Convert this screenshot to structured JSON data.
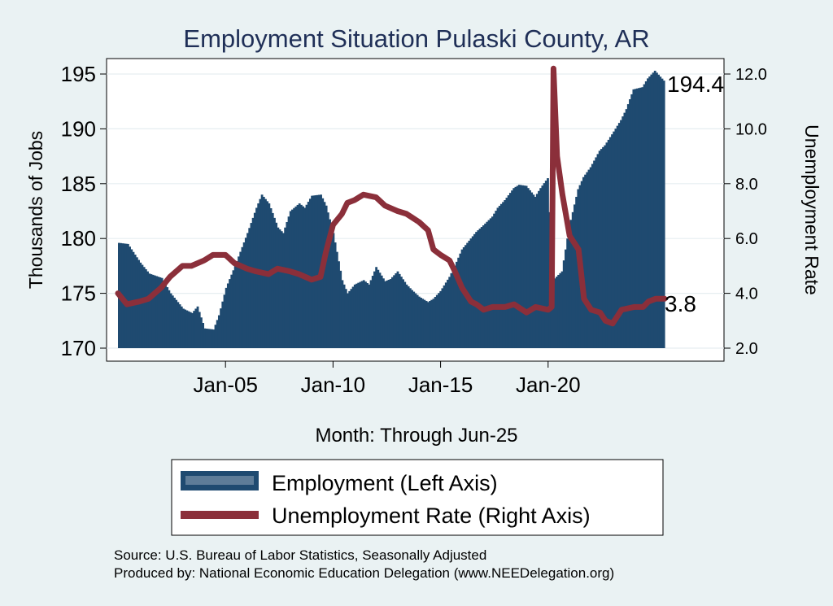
{
  "chart_data": {
    "type": "bar+line",
    "title": "Employment Situation Pulaski  County, AR",
    "xlabel": "Month: Through Jun-25",
    "ylabel_left": "Thousands of Jobs",
    "ylabel_right": "Unemployment Rate",
    "x_tick_labels": [
      "Jan-05",
      "Jan-10",
      "Jan-15",
      "Jan-20"
    ],
    "x_ticks_dates": [
      "2005-01",
      "2010-01",
      "2015-01",
      "2020-01"
    ],
    "x_range": [
      "2000-01",
      "2025-06"
    ],
    "ylim_left": [
      170,
      195
    ],
    "yticks_left": [
      170,
      175,
      180,
      185,
      190,
      195
    ],
    "ylim_right": [
      2.0,
      12.0
    ],
    "yticks_right": [
      "2.0",
      "4.0",
      "6.0",
      "8.0",
      "10.0",
      "12.0"
    ],
    "end_labels": {
      "employment": "194.4",
      "unemployment": "3.8"
    },
    "colors": {
      "employment": "#1f4a70",
      "unemployment": "#8b2f3a",
      "background": "#eaf2f3",
      "plot": "#ffffff",
      "grid": "#e6eef0",
      "title": "#1f2f57"
    },
    "grid": true,
    "legend_position": "bottom",
    "series": [
      {
        "name": "Employment (Left Axis)",
        "type": "bar",
        "axis": "left",
        "points": [
          [
            "2000-01",
            179.6
          ],
          [
            "2000-06",
            179.5
          ],
          [
            "2001-01",
            177.8
          ],
          [
            "2001-06",
            176.8
          ],
          [
            "2002-01",
            176.4
          ],
          [
            "2002-06",
            175.0
          ],
          [
            "2003-01",
            173.6
          ],
          [
            "2003-06",
            173.2
          ],
          [
            "2003-09",
            173.8
          ],
          [
            "2004-01",
            171.8
          ],
          [
            "2004-06",
            171.7
          ],
          [
            "2004-09",
            173.0
          ],
          [
            "2005-01",
            175.5
          ],
          [
            "2005-06",
            177.5
          ],
          [
            "2006-01",
            180.5
          ],
          [
            "2006-06",
            182.8
          ],
          [
            "2006-09",
            184.0
          ],
          [
            "2007-01",
            183.2
          ],
          [
            "2007-06",
            181.0
          ],
          [
            "2007-09",
            180.5
          ],
          [
            "2008-01",
            182.5
          ],
          [
            "2008-06",
            183.2
          ],
          [
            "2008-09",
            182.8
          ],
          [
            "2009-01",
            183.9
          ],
          [
            "2009-06",
            184.0
          ],
          [
            "2009-09",
            183.0
          ],
          [
            "2010-01",
            180.5
          ],
          [
            "2010-06",
            176.2
          ],
          [
            "2010-09",
            175.0
          ],
          [
            "2011-01",
            175.8
          ],
          [
            "2011-06",
            176.2
          ],
          [
            "2011-09",
            175.8
          ],
          [
            "2012-01",
            177.4
          ],
          [
            "2012-06",
            176.1
          ],
          [
            "2012-09",
            176.3
          ],
          [
            "2013-01",
            177.0
          ],
          [
            "2013-06",
            175.8
          ],
          [
            "2013-09",
            175.3
          ],
          [
            "2014-01",
            174.7
          ],
          [
            "2014-06",
            174.2
          ],
          [
            "2014-09",
            174.5
          ],
          [
            "2015-01",
            175.2
          ],
          [
            "2015-06",
            176.5
          ],
          [
            "2015-09",
            177.5
          ],
          [
            "2016-01",
            179.0
          ],
          [
            "2016-06",
            180.0
          ],
          [
            "2016-09",
            180.6
          ],
          [
            "2017-01",
            181.2
          ],
          [
            "2017-06",
            182.0
          ],
          [
            "2017-09",
            182.8
          ],
          [
            "2018-01",
            183.5
          ],
          [
            "2018-06",
            184.6
          ],
          [
            "2018-09",
            184.9
          ],
          [
            "2019-01",
            184.8
          ],
          [
            "2019-06",
            183.8
          ],
          [
            "2019-09",
            184.6
          ],
          [
            "2020-01",
            185.5
          ],
          [
            "2020-04",
            176.2
          ],
          [
            "2020-09",
            177.0
          ],
          [
            "2021-01",
            181.0
          ],
          [
            "2021-06",
            184.5
          ],
          [
            "2021-09",
            185.6
          ],
          [
            "2022-01",
            186.5
          ],
          [
            "2022-06",
            188.0
          ],
          [
            "2022-09",
            188.5
          ],
          [
            "2023-01",
            189.5
          ],
          [
            "2023-06",
            190.8
          ],
          [
            "2023-09",
            191.8
          ],
          [
            "2024-01",
            193.6
          ],
          [
            "2024-06",
            193.8
          ],
          [
            "2024-09",
            194.6
          ],
          [
            "2025-01",
            195.3
          ],
          [
            "2025-06",
            194.4
          ]
        ]
      },
      {
        "name": "Unemployment Rate (Right Axis)",
        "type": "line",
        "axis": "right",
        "points": [
          [
            "2000-01",
            4.0
          ],
          [
            "2000-06",
            3.6
          ],
          [
            "2001-01",
            3.7
          ],
          [
            "2001-06",
            3.8
          ],
          [
            "2002-01",
            4.2
          ],
          [
            "2002-06",
            4.6
          ],
          [
            "2003-01",
            5.0
          ],
          [
            "2003-06",
            5.0
          ],
          [
            "2004-01",
            5.2
          ],
          [
            "2004-06",
            5.4
          ],
          [
            "2005-01",
            5.4
          ],
          [
            "2005-06",
            5.1
          ],
          [
            "2006-01",
            4.9
          ],
          [
            "2006-06",
            4.8
          ],
          [
            "2007-01",
            4.7
          ],
          [
            "2007-06",
            4.9
          ],
          [
            "2008-01",
            4.8
          ],
          [
            "2008-06",
            4.7
          ],
          [
            "2009-01",
            4.5
          ],
          [
            "2009-06",
            4.6
          ],
          [
            "2009-09",
            5.5
          ],
          [
            "2010-01",
            6.5
          ],
          [
            "2010-06",
            6.9
          ],
          [
            "2010-09",
            7.3
          ],
          [
            "2011-01",
            7.4
          ],
          [
            "2011-06",
            7.6
          ],
          [
            "2012-01",
            7.5
          ],
          [
            "2012-06",
            7.2
          ],
          [
            "2013-01",
            7.0
          ],
          [
            "2013-06",
            6.9
          ],
          [
            "2014-01",
            6.6
          ],
          [
            "2014-06",
            6.3
          ],
          [
            "2014-09",
            5.6
          ],
          [
            "2015-01",
            5.4
          ],
          [
            "2015-06",
            5.2
          ],
          [
            "2015-09",
            4.8
          ],
          [
            "2016-01",
            4.2
          ],
          [
            "2016-06",
            3.7
          ],
          [
            "2016-09",
            3.6
          ],
          [
            "2017-01",
            3.4
          ],
          [
            "2017-06",
            3.5
          ],
          [
            "2018-01",
            3.5
          ],
          [
            "2018-06",
            3.6
          ],
          [
            "2019-01",
            3.3
          ],
          [
            "2019-06",
            3.5
          ],
          [
            "2020-01",
            3.4
          ],
          [
            "2020-03",
            3.5
          ],
          [
            "2020-04",
            12.2
          ],
          [
            "2020-06",
            9.0
          ],
          [
            "2020-09",
            7.6
          ],
          [
            "2021-01",
            6.1
          ],
          [
            "2021-06",
            5.6
          ],
          [
            "2021-09",
            3.8
          ],
          [
            "2022-01",
            3.4
          ],
          [
            "2022-06",
            3.3
          ],
          [
            "2022-09",
            3.0
          ],
          [
            "2023-01",
            2.9
          ],
          [
            "2023-06",
            3.4
          ],
          [
            "2024-01",
            3.5
          ],
          [
            "2024-06",
            3.5
          ],
          [
            "2024-09",
            3.7
          ],
          [
            "2025-01",
            3.8
          ],
          [
            "2025-06",
            3.8
          ]
        ]
      }
    ]
  },
  "legend": {
    "items": [
      {
        "label": "Employment (Left Axis)",
        "kind": "bar"
      },
      {
        "label": "Unemployment Rate (Right Axis)",
        "kind": "line"
      }
    ]
  },
  "footer": {
    "source": "Source: U.S. Bureau of Labor Statistics, Seasonally Adjusted",
    "produced_by": "Produced by: National Economic Education Delegation (www.NEEDelegation.org)"
  }
}
